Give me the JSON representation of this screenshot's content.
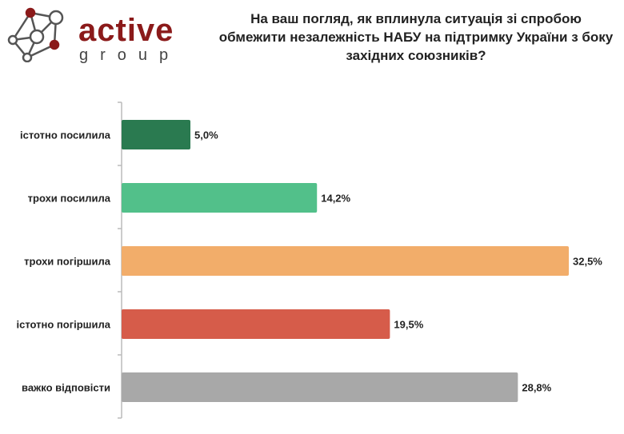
{
  "logo": {
    "word1": "active",
    "word2": "group"
  },
  "chart_data": {
    "type": "bar",
    "orientation": "horizontal",
    "title": "На ваш погляд, як вплинула ситуація зі спробою обмежити незалежність НАБУ на підтримку України з боку західних союзників?",
    "categories": [
      "істотно посилила",
      "трохи посилила",
      "трохи погіршила",
      "істотно погіршила",
      "важко відповісти"
    ],
    "values": [
      5.0,
      14.2,
      32.5,
      19.5,
      28.8
    ],
    "labels": [
      "5,0%",
      "14,2%",
      "32,5%",
      "19,5%",
      "28,8%"
    ],
    "colors": [
      "#2a7a50",
      "#52c08a",
      "#f2ad6a",
      "#d65c4a",
      "#a8a8a8"
    ],
    "xlim": [
      0,
      35
    ],
    "grid": false
  }
}
